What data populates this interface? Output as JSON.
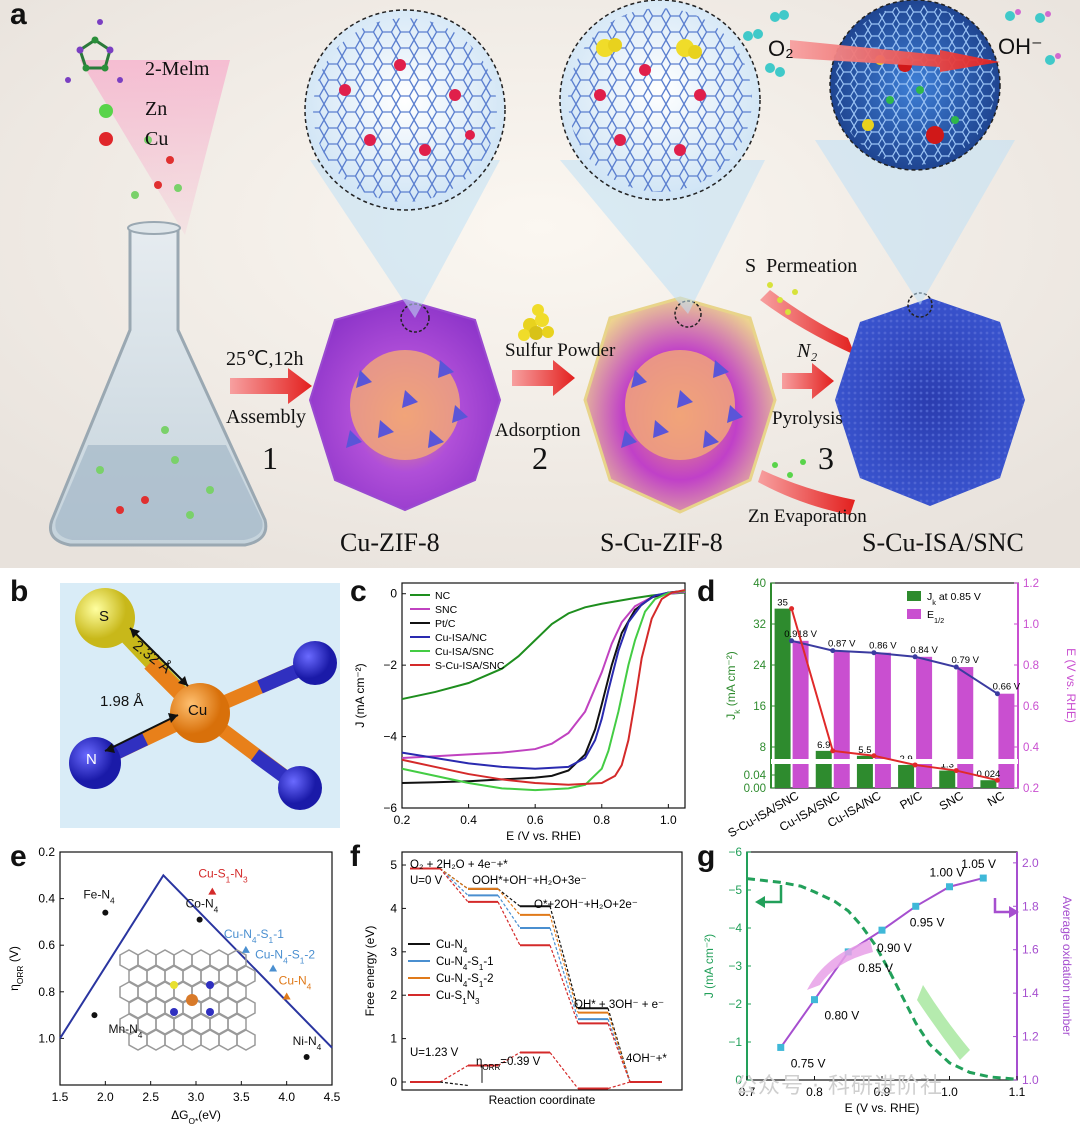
{
  "panels": {
    "a": {
      "letter": "a",
      "legend": {
        "melm": "2-Melm",
        "zn": "Zn",
        "cu": "Cu"
      },
      "step1": {
        "cond": "25℃,12h",
        "name": "Assembly",
        "num": "1"
      },
      "step2": {
        "reagent": "Sulfur Powder",
        "name": "Adsorption",
        "num": "2"
      },
      "step3": {
        "permeation": "S  Permeation",
        "gas": "N₂",
        "name": "Pyrolysis",
        "num": "3",
        "evap": "Zn Evaporation"
      },
      "products": {
        "p1": "Cu-ZIF-8",
        "p2": "S-Cu-ZIF-8",
        "p3": "S-Cu-ISA/SNC"
      },
      "reaction": {
        "o2": "O₂",
        "oh": "OH⁻"
      }
    },
    "b": {
      "letter": "b",
      "atoms": {
        "s": "S",
        "cu": "Cu",
        "n": "N"
      },
      "bonds": {
        "cu_s": "2.32 Å",
        "cu_n": "1.98 Å"
      }
    },
    "c": {
      "letter": "c"
    },
    "d": {
      "letter": "d"
    },
    "e": {
      "letter": "e"
    },
    "f": {
      "letter": "f"
    },
    "g": {
      "letter": "g"
    }
  },
  "chart_data": [
    {
      "panel": "c",
      "type": "line",
      "xlabel": "E (V vs. RHE)",
      "ylabel": "J (mA cm⁻²)",
      "xlim": [
        0.2,
        1.05
      ],
      "ylim": [
        -6,
        0.3
      ],
      "xticks": [
        "0.2",
        "0.4",
        "0.6",
        "0.8",
        "1.0"
      ],
      "yticks": [
        "0",
        "−2",
        "−4",
        "−6"
      ],
      "legend_position": "top-left",
      "series": [
        {
          "name": "NC",
          "color": "#1e8e1e",
          "x": [
            0.2,
            0.3,
            0.4,
            0.5,
            0.55,
            0.6,
            0.65,
            0.7,
            0.75,
            0.8,
            0.85,
            0.9,
            0.95,
            1.0,
            1.05
          ],
          "y": [
            -2.95,
            -2.75,
            -2.5,
            -2.1,
            -1.75,
            -1.3,
            -0.85,
            -0.55,
            -0.38,
            -0.28,
            -0.2,
            -0.12,
            -0.05,
            0.0,
            0.03
          ]
        },
        {
          "name": "SNC",
          "color": "#c042c0",
          "x": [
            0.2,
            0.3,
            0.4,
            0.5,
            0.6,
            0.65,
            0.7,
            0.75,
            0.8,
            0.83,
            0.86,
            0.9,
            0.95,
            1.0,
            1.05
          ],
          "y": [
            -4.6,
            -4.55,
            -4.5,
            -4.45,
            -4.35,
            -4.2,
            -3.9,
            -3.3,
            -2.2,
            -1.4,
            -0.8,
            -0.35,
            -0.1,
            0.0,
            0.05
          ]
        },
        {
          "name": "Pt/C",
          "color": "#111111",
          "x": [
            0.2,
            0.3,
            0.4,
            0.5,
            0.6,
            0.65,
            0.7,
            0.75,
            0.78,
            0.8,
            0.83,
            0.86,
            0.9,
            0.95,
            1.0,
            1.05
          ],
          "y": [
            -5.3,
            -5.28,
            -5.25,
            -5.2,
            -5.15,
            -5.1,
            -4.95,
            -4.5,
            -3.8,
            -3.1,
            -2.0,
            -1.1,
            -0.45,
            -0.1,
            0.03,
            0.08
          ]
        },
        {
          "name": "Cu-ISA/NC",
          "color": "#2a2ab0",
          "x": [
            0.2,
            0.3,
            0.4,
            0.5,
            0.6,
            0.7,
            0.75,
            0.78,
            0.8,
            0.82,
            0.85,
            0.88,
            0.92,
            0.96,
            1.0,
            1.05
          ],
          "y": [
            -4.45,
            -4.6,
            -4.75,
            -4.85,
            -4.9,
            -4.85,
            -4.6,
            -4.1,
            -3.5,
            -2.7,
            -1.6,
            -0.8,
            -0.3,
            -0.05,
            0.03,
            0.08
          ]
        },
        {
          "name": "Cu-ISA/SNC",
          "color": "#44cc44",
          "x": [
            0.2,
            0.3,
            0.4,
            0.5,
            0.6,
            0.7,
            0.75,
            0.8,
            0.82,
            0.85,
            0.88,
            0.9,
            0.93,
            0.96,
            1.0,
            1.05
          ],
          "y": [
            -4.9,
            -5.1,
            -5.3,
            -5.45,
            -5.5,
            -5.45,
            -5.35,
            -4.9,
            -4.4,
            -3.3,
            -2.0,
            -1.3,
            -0.5,
            -0.15,
            0.02,
            0.08
          ]
        },
        {
          "name": "S-Cu-ISA/SNC",
          "color": "#d42a2a",
          "x": [
            0.2,
            0.3,
            0.4,
            0.5,
            0.6,
            0.7,
            0.8,
            0.84,
            0.86,
            0.88,
            0.9,
            0.92,
            0.95,
            0.98,
            1.01,
            1.05
          ],
          "y": [
            -4.65,
            -4.85,
            -5.05,
            -5.2,
            -5.3,
            -5.35,
            -5.3,
            -5.1,
            -4.8,
            -4.1,
            -3.0,
            -1.8,
            -0.7,
            -0.15,
            0.03,
            0.1
          ]
        }
      ]
    },
    {
      "panel": "d",
      "type": "bar",
      "categories": [
        "S-Cu-ISA/SNC",
        "Cu-ISA/SNC",
        "Cu-ISA/NC",
        "Pt/C",
        "SNC",
        "NC"
      ],
      "series": [
        {
          "name": "J_k at 0.85 V",
          "color": "#2e8b2e",
          "values": [
            35,
            6.9,
            5.5,
            2.9,
            1.3,
            0.024
          ],
          "labels": [
            "35",
            "6.9",
            "5.5",
            "2.9",
            "1.3",
            "0.024"
          ]
        },
        {
          "name": "E_1/2",
          "color": "#c94fd0",
          "values": [
            0.918,
            0.87,
            0.86,
            0.84,
            0.79,
            0.66
          ],
          "labels": [
            "0.918 V",
            "0.87 V",
            "0.86 V",
            "0.84 V",
            "0.79 V",
            "0.66 V"
          ]
        }
      ],
      "legend": [
        "J",
        "k",
        " at 0.85 V",
        "E",
        "1/2"
      ],
      "yleft_label": [
        "J",
        "k",
        " (mA cm⁻²)"
      ],
      "yright_label": "E (V vs. RHE)",
      "yleft_ticks": [
        "0.00",
        "0.04",
        "8",
        "16",
        "24",
        "32",
        "40"
      ],
      "yright_ticks": [
        "0.2",
        "0.4",
        "0.6",
        "0.8",
        "1.0",
        "1.2"
      ],
      "yright_lim": [
        0.2,
        1.2
      ],
      "yleft_broken_axis": true,
      "legend_position": "top-right"
    },
    {
      "panel": "e",
      "type": "scatter",
      "xlabel": "ΔG",
      "xlabel_sub": "O*",
      "xlabel_unit": "(eV)",
      "ylabel": "η",
      "ylabel_sub": "ORR",
      "ylabel_unit": " (V)",
      "xlim": [
        1.5,
        4.5
      ],
      "ylim": [
        1.2,
        0.2
      ],
      "xticks": [
        "1.5",
        "2.0",
        "2.5",
        "3.0",
        "3.5",
        "4.0",
        "4.5"
      ],
      "yticks": [
        "0.2",
        "0.4",
        "0.6",
        "0.8",
        "1.0"
      ],
      "volcano": {
        "x": [
          1.5,
          2.64,
          4.5
        ],
        "y": [
          1.0,
          0.3,
          1.04
        ]
      },
      "points": [
        {
          "name": "Fe-N",
          "sub": "4",
          "x": 2.0,
          "y": 0.46,
          "color": "#111111",
          "marker": "circle"
        },
        {
          "name": "Mn-N",
          "sub": "4",
          "x": 1.88,
          "y": 0.9,
          "color": "#111111",
          "marker": "circle"
        },
        {
          "name": "Co-N",
          "sub": "4",
          "x": 3.04,
          "y": 0.49,
          "color": "#111111",
          "marker": "circle"
        },
        {
          "name": "Cu-S",
          "sub": "1",
          "tail": "-N",
          "sub2": "3",
          "x": 3.18,
          "y": 0.37,
          "color": "#d42a2a",
          "marker": "triangle"
        },
        {
          "name": "Cu-N",
          "sub": "4",
          "tail": "-S",
          "sub2": "1",
          "tail2": "-1",
          "x": 3.55,
          "y": 0.62,
          "color": "#4a8fd0",
          "marker": "triangle"
        },
        {
          "name": "Cu-N",
          "sub": "4",
          "tail": "-S",
          "sub2": "1",
          "tail2": "-2",
          "x": 3.85,
          "y": 0.7,
          "color": "#4a8fd0",
          "marker": "triangle"
        },
        {
          "name": "Cu-N",
          "sub": "4",
          "x": 4.0,
          "y": 0.82,
          "color": "#e07a1a",
          "marker": "triangle"
        },
        {
          "name": "Ni-N",
          "sub": "4",
          "x": 4.22,
          "y": 1.08,
          "color": "#111111",
          "marker": "circle"
        }
      ]
    },
    {
      "panel": "f",
      "type": "line",
      "xlabel": "Reaction coordinate",
      "ylabel": "Free energy (eV)",
      "ylim": [
        -0.3,
        5.3
      ],
      "yticks": [
        "0",
        "1",
        "2",
        "3",
        "4",
        "5"
      ],
      "series": [
        {
          "name": "Cu-N",
          "sub": "4",
          "color": "#111111",
          "values": [
            4.92,
            4.45,
            4.05,
            1.7,
            0.0
          ]
        },
        {
          "name": "Cu-N",
          "sub": "4",
          "tail": "-S",
          "sub2": "1",
          "tail2": "-1",
          "color": "#4a8fd0",
          "values": [
            4.92,
            4.3,
            3.55,
            1.45,
            0.0
          ]
        },
        {
          "name": "Cu-N",
          "sub": "4",
          "tail": "-S",
          "sub2": "1",
          "tail2": "-2",
          "color": "#e07a1a",
          "values": [
            4.92,
            4.45,
            3.85,
            1.6,
            0.0
          ]
        },
        {
          "name": "Cu-S",
          "sub": "1",
          "tail": "N",
          "sub2": "3",
          "color": "#d42a2a",
          "values": [
            4.92,
            4.15,
            3.15,
            1.35,
            0.0
          ]
        },
        {
          "name": "U=1.23 V",
          "color": "#d42a2a",
          "values": [
            0.0,
            0.38,
            0.68,
            -0.15,
            0.0
          ]
        },
        {
          "name": "U=1.23 V black",
          "color": "#111111",
          "values": [
            0.0,
            -0.1
          ]
        }
      ],
      "annotations": {
        "s1": "O₂ + 2H₂O + 4e⁻+*",
        "s2": "OOH*+OH⁻+H₂O+3e⁻",
        "s3": "O*+2OH⁻+H₂O+2e⁻",
        "s4": "OH* + 3OH⁻ + e⁻",
        "s5": "4OH⁻+*",
        "u0": "U=0 V",
        "u123": "U=1.23 V",
        "eta": "η",
        "eta_sub": "ORR",
        "eta_val": "=0.39 V"
      }
    },
    {
      "panel": "g",
      "type": "line",
      "xlabel": "E (V vs. RHE)",
      "ylabel_left": "J (mA cm⁻²)",
      "ylabel_right": "Average oxidation number",
      "xlim": [
        0.7,
        1.1
      ],
      "yleft_lim": [
        0,
        -6
      ],
      "yright_lim": [
        1.0,
        2.05
      ],
      "xticks": [
        "0.7",
        "0.8",
        "0.9",
        "1.0",
        "1.1"
      ],
      "yleft_ticks": [
        "0",
        "−1",
        "−2",
        "−3",
        "−4",
        "−5",
        "−6"
      ],
      "yright_ticks": [
        "1.0",
        "1.2",
        "1.4",
        "1.6",
        "1.8",
        "2.0"
      ],
      "series": [
        {
          "name": "J",
          "color": "#22a05a",
          "style": "dashed",
          "x": [
            0.7,
            0.75,
            0.78,
            0.8,
            0.83,
            0.85,
            0.87,
            0.89,
            0.91,
            0.93,
            0.95,
            0.97,
            1.0,
            1.03,
            1.06,
            1.1
          ],
          "y": [
            -5.3,
            -5.2,
            -5.1,
            -4.95,
            -4.7,
            -4.45,
            -4.05,
            -3.55,
            -2.9,
            -2.2,
            -1.5,
            -0.95,
            -0.45,
            -0.2,
            -0.08,
            -0.02
          ]
        },
        {
          "name": "Average oxidation number",
          "color": "#a64fcf",
          "x": [
            0.75,
            0.8,
            0.85,
            0.9,
            0.95,
            1.0,
            1.05
          ],
          "y": [
            1.15,
            1.37,
            1.59,
            1.69,
            1.8,
            1.89,
            1.93
          ],
          "labels": [
            "0.75 V",
            "0.80 V",
            "0.85 V",
            "0.90 V",
            "0.95 V",
            "1.00 V",
            "1.05 V"
          ]
        }
      ]
    }
  ],
  "watermark": "公众号 · 科研进阶社"
}
